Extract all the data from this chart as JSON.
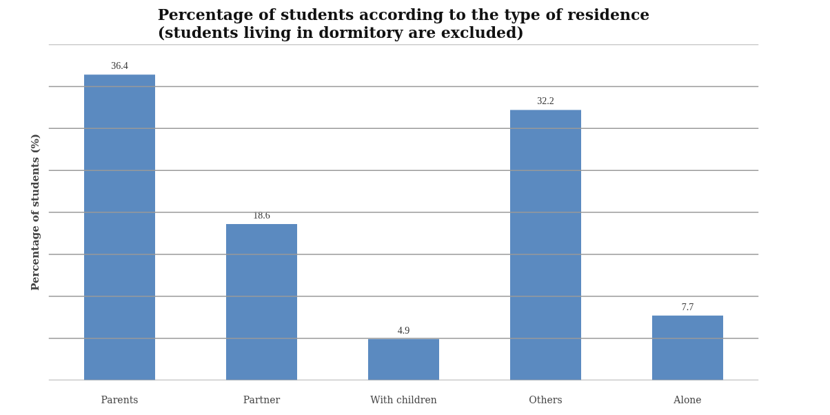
{
  "chart_data": {
    "type": "bar",
    "title": "Percentage of students according to the type of residence\n(students living in dormitory are excluded)",
    "ylabel": "Percentage of students (%)",
    "categories": [
      "Parents",
      "Partner",
      "With children",
      "Others",
      "Alone"
    ],
    "values": [
      36.4,
      18.6,
      4.9,
      32.2,
      7.7
    ],
    "color": "#5b8ac0",
    "data_labels": true,
    "ylim": [
      0,
      40
    ],
    "yticks": [
      {
        "value": 0,
        "label": null
      },
      {
        "value": 5,
        "label": null
      },
      {
        "value": 10,
        "label": null
      },
      {
        "value": 15,
        "label": null
      },
      {
        "value": 20,
        "label": null
      },
      {
        "value": 25,
        "label": null
      },
      {
        "value": 30,
        "label": null
      },
      {
        "value": 35,
        "label": null
      },
      {
        "value": 40,
        "label": null
      }
    ],
    "tick_labels": "x",
    "grid": "y"
  }
}
